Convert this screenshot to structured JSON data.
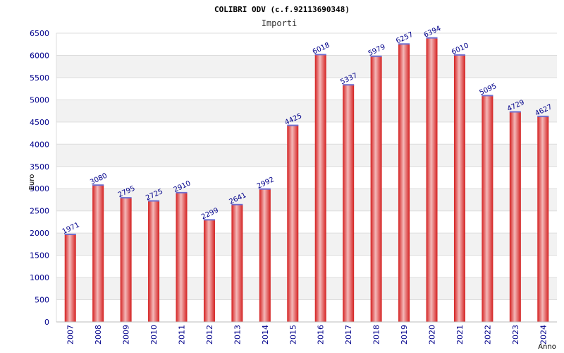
{
  "chart_data": {
    "type": "bar",
    "title": "COLIBRI ODV (c.f.92113690348)",
    "subtitle": "Importi",
    "xlabel": "Anno",
    "ylabel": "Euro",
    "categories": [
      "2007",
      "2008",
      "2009",
      "2010",
      "2011",
      "2012",
      "2013",
      "2014",
      "2015",
      "2016",
      "2017",
      "2018",
      "2019",
      "2020",
      "2021",
      "2022",
      "2023",
      "2024"
    ],
    "values": [
      1971,
      3080,
      2795,
      2725,
      2910,
      2299,
      2641,
      2992,
      4425,
      6018,
      5337,
      5979,
      6257,
      6394,
      6010,
      5095,
      4729,
      4627
    ],
    "ylim": [
      0,
      6500
    ],
    "yticks": [
      0,
      500,
      1000,
      1500,
      2000,
      2500,
      3000,
      3500,
      4000,
      4500,
      5000,
      5500,
      6000,
      6500
    ],
    "grid": true,
    "colors": {
      "bar_edge": "#d42020",
      "bar_mid": "#f4b8b8",
      "bar_top": "#7070d0",
      "band": "#f2f2f2",
      "grid": "#dddddd",
      "text": "#00008b"
    }
  }
}
